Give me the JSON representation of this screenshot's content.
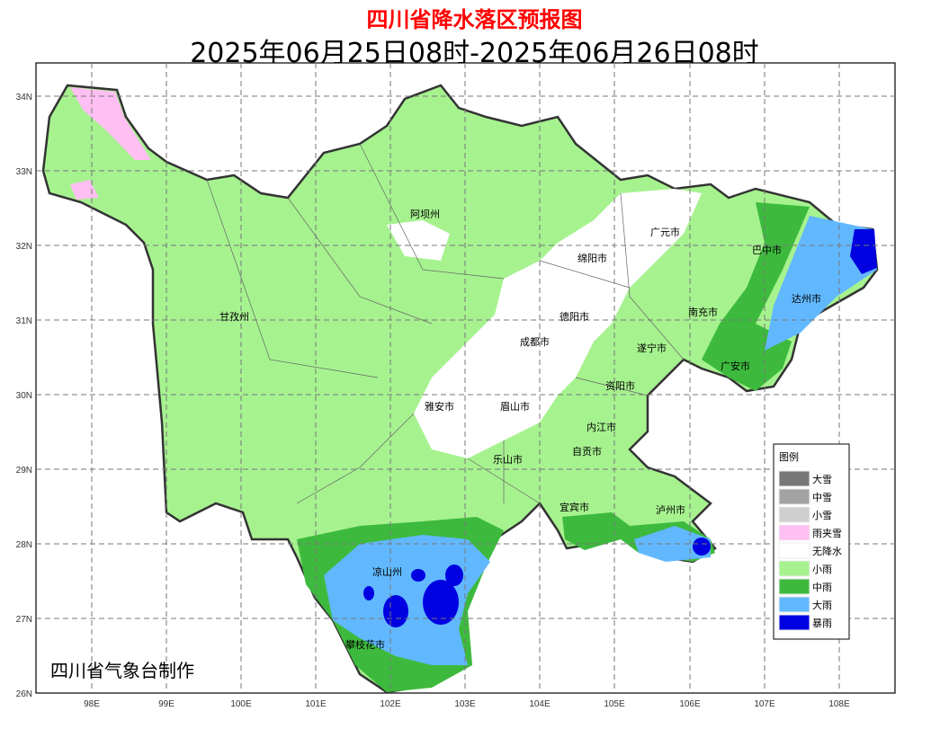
{
  "title": "四川省降水落区预报图",
  "subtitle": "2025年06月25日08时-2025年06月26日08时",
  "credit": "四川省气象台制作",
  "axes": {
    "lon_ticks": [
      "98E",
      "99E",
      "100E",
      "101E",
      "102E",
      "103E",
      "104E",
      "105E",
      "106E",
      "107E",
      "108E"
    ],
    "lat_ticks": [
      "34N",
      "33N",
      "32N",
      "31N",
      "30N",
      "29N",
      "28N",
      "27N",
      "26N"
    ]
  },
  "cities": [
    "阿坝州",
    "广元市",
    "巴中市",
    "绵阳市",
    "达州市",
    "甘孜州",
    "德阳市",
    "南充市",
    "成都市",
    "遂宁市",
    "广安市",
    "资阳市",
    "雅安市",
    "眉山市",
    "内江市",
    "自贡市",
    "乐山市",
    "宜宾市",
    "泸州市",
    "凉山州",
    "攀枝花市"
  ],
  "legend": {
    "title": "图例",
    "items": [
      {
        "label": "大雪",
        "color": "#777777"
      },
      {
        "label": "中雪",
        "color": "#a3a3a3"
      },
      {
        "label": "小雪",
        "color": "#cfcfcf"
      },
      {
        "label": "雨夹雪",
        "color": "#ffbff2"
      },
      {
        "label": "无降水",
        "color": "#ffffff"
      },
      {
        "label": "小雨",
        "color": "#a6f28f"
      },
      {
        "label": "中雨",
        "color": "#3dba3d"
      },
      {
        "label": "大雨",
        "color": "#61b8ff"
      },
      {
        "label": "暴雨",
        "color": "#0000e1"
      }
    ]
  }
}
